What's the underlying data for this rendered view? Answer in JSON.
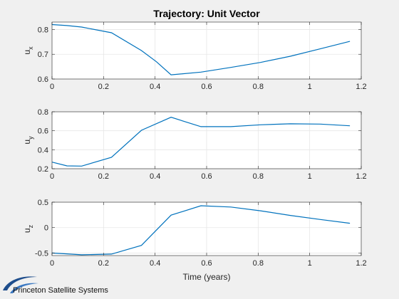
{
  "figure": {
    "title": "Trajectory: Unit Vector",
    "xlabel": "Time (years)",
    "logo_text": "Princeton Satellite Systems"
  },
  "colors": {
    "line": "#0072BD",
    "axes_bg": "#ffffff",
    "figure_bg": "#f0f0f0",
    "grid": "#e6e6e6",
    "axis": "#262626",
    "logo_swoosh": "#1f4e8c"
  },
  "chart_data": [
    {
      "type": "line",
      "ylabel": "u",
      "ylabel_sub": "x",
      "xlim": [
        0,
        1.2
      ],
      "ylim": [
        0.6,
        0.83
      ],
      "xticks": [
        "0",
        "0.2",
        "0.4",
        "0.6",
        "0.8",
        "1",
        "1.2"
      ],
      "yticks": [
        "0.6",
        "0.7",
        "0.8"
      ],
      "ytick_values": [
        0.6,
        0.7,
        0.8
      ],
      "grid": true,
      "x": [
        0,
        0.058,
        0.115,
        0.231,
        0.347,
        0.405,
        0.462,
        0.578,
        0.694,
        0.809,
        0.925,
        1.041,
        1.156
      ],
      "y": [
        0.82,
        0.816,
        0.81,
        0.787,
        0.715,
        0.67,
        0.617,
        0.628,
        0.647,
        0.667,
        0.692,
        0.722,
        0.752
      ]
    },
    {
      "type": "line",
      "ylabel": "u",
      "ylabel_sub": "y",
      "xlim": [
        0,
        1.2
      ],
      "ylim": [
        0.2,
        0.8
      ],
      "xticks": [
        "0",
        "0.2",
        "0.4",
        "0.6",
        "0.8",
        "1",
        "1.2"
      ],
      "yticks": [
        "0.2",
        "0.4",
        "0.6",
        "0.8"
      ],
      "ytick_values": [
        0.2,
        0.4,
        0.6,
        0.8
      ],
      "grid": true,
      "x": [
        0,
        0.058,
        0.115,
        0.231,
        0.347,
        0.462,
        0.578,
        0.694,
        0.809,
        0.925,
        1.041,
        1.156
      ],
      "y": [
        0.27,
        0.23,
        0.228,
        0.32,
        0.605,
        0.742,
        0.643,
        0.643,
        0.663,
        0.673,
        0.67,
        0.652
      ]
    },
    {
      "type": "line",
      "ylabel": "u",
      "ylabel_sub": "z",
      "xlim": [
        0,
        1.2
      ],
      "ylim": [
        -0.55,
        0.5
      ],
      "xticks": [
        "0",
        "0.2",
        "0.4",
        "0.6",
        "0.8",
        "1",
        "1.2"
      ],
      "yticks": [
        "-0.5",
        "0",
        "0.5"
      ],
      "ytick_values": [
        -0.5,
        0,
        0.5
      ],
      "grid": true,
      "x": [
        0,
        0.115,
        0.231,
        0.347,
        0.462,
        0.578,
        0.694,
        0.809,
        0.925,
        1.041,
        1.156
      ],
      "y": [
        -0.5,
        -0.535,
        -0.52,
        -0.35,
        0.245,
        0.43,
        0.405,
        0.33,
        0.24,
        0.16,
        0.085
      ]
    }
  ]
}
